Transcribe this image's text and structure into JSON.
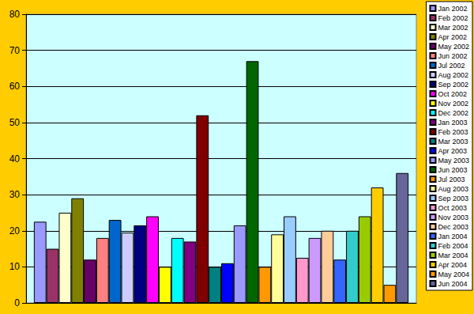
{
  "chart_data": {
    "type": "bar",
    "categories": [
      null
    ],
    "series": [
      {
        "name": "Jan 2002",
        "color": "#9999FF",
        "values": [
          22.5
        ]
      },
      {
        "name": "Feb 2002",
        "color": "#993366",
        "values": [
          15
        ]
      },
      {
        "name": "Mar 2002",
        "color": "#FFFFCC",
        "values": [
          25
        ]
      },
      {
        "name": "Apr 2002",
        "color": "#808000",
        "values": [
          29
        ]
      },
      {
        "name": "May 2002",
        "color": "#660066",
        "values": [
          12
        ]
      },
      {
        "name": "Jun 2002",
        "color": "#FF8080",
        "values": [
          18
        ]
      },
      {
        "name": "Jul 2002",
        "color": "#0066CC",
        "values": [
          23
        ]
      },
      {
        "name": "Aug 2002",
        "color": "#CCCCFF",
        "values": [
          19.5
        ]
      },
      {
        "name": "Sep 2002",
        "color": "#000080",
        "values": [
          21.5
        ]
      },
      {
        "name": "Oct 2002",
        "color": "#FF00FF",
        "values": [
          24
        ]
      },
      {
        "name": "Nov 2002",
        "color": "#FFFF00",
        "values": [
          10
        ]
      },
      {
        "name": "Dec 2002",
        "color": "#00FFFF",
        "values": [
          18
        ]
      },
      {
        "name": "Jan 2003",
        "color": "#800080",
        "values": [
          17
        ]
      },
      {
        "name": "Feb 2003",
        "color": "#800000",
        "values": [
          52
        ]
      },
      {
        "name": "Mar 2003",
        "color": "#008080",
        "values": [
          10
        ]
      },
      {
        "name": "Apr 2003",
        "color": "#0000FF",
        "values": [
          11
        ]
      },
      {
        "name": "May 2003",
        "color": "#9999FF",
        "values": [
          21.5
        ]
      },
      {
        "name": "Jun 2003",
        "color": "#006600",
        "values": [
          67
        ]
      },
      {
        "name": "Jul 2003",
        "color": "#FF9900",
        "values": [
          10
        ]
      },
      {
        "name": "Aug 2003",
        "color": "#FFFF99",
        "values": [
          19
        ]
      },
      {
        "name": "Sep 2003",
        "color": "#99CCFF",
        "values": [
          24
        ]
      },
      {
        "name": "Oct 2003",
        "color": "#FF99CC",
        "values": [
          12.5
        ]
      },
      {
        "name": "Nov 2003",
        "color": "#CC99FF",
        "values": [
          18
        ]
      },
      {
        "name": "Dec 2003",
        "color": "#FFCC99",
        "values": [
          20
        ]
      },
      {
        "name": "Jan 2004",
        "color": "#3366FF",
        "values": [
          12
        ]
      },
      {
        "name": "Feb 2004",
        "color": "#33CCCC",
        "values": [
          20
        ]
      },
      {
        "name": "Mar 2004",
        "color": "#99CC00",
        "values": [
          24
        ]
      },
      {
        "name": "Apr 2004",
        "color": "#FFCC00",
        "values": [
          32
        ]
      },
      {
        "name": "May 2004",
        "color": "#FF9900",
        "values": [
          5
        ]
      },
      {
        "name": "Jun 2004",
        "color": "#666699",
        "values": [
          36
        ]
      }
    ],
    "ylim": [
      0,
      80
    ],
    "yticks": [
      0,
      10,
      20,
      30,
      40,
      50,
      60,
      70,
      80
    ],
    "grid": true,
    "legend": "right",
    "tick_labels": "y"
  }
}
